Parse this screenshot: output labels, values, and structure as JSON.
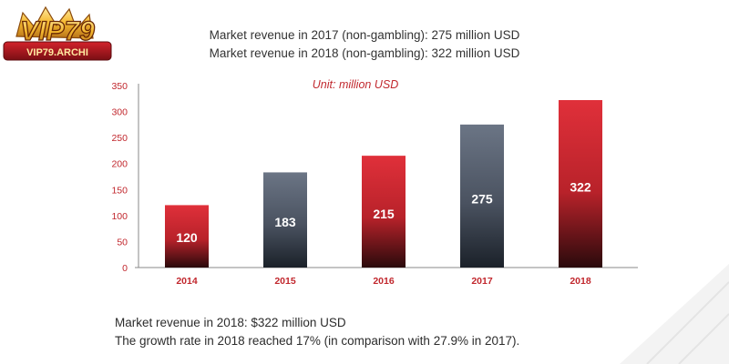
{
  "logo": {
    "text": "VIP79",
    "subtext": "VIP79.ARCHI"
  },
  "header": {
    "line1": "Market revenue in 2017 (non-gambling): 275 million USD",
    "line2": "Market revenue in 2018 (non-gambling): 322 million USD"
  },
  "chart_data": {
    "type": "bar",
    "unit_label": "Unit: million USD",
    "categories": [
      "2014",
      "2015",
      "2016",
      "2017",
      "2018"
    ],
    "values": [
      120,
      183,
      215,
      275,
      322
    ],
    "data_labels": [
      "120",
      "183",
      "215",
      "275",
      "322"
    ],
    "y_ticks": [
      "0",
      "50",
      "100",
      "150",
      "200",
      "250",
      "300",
      "350"
    ],
    "ylim": [
      0,
      350
    ],
    "bar_colors": [
      "red",
      "slate",
      "red",
      "slate",
      "red"
    ],
    "legend": "none",
    "grid": false
  },
  "colors": {
    "red_top": "#e0303a",
    "red_bottom": "#2a0a0c",
    "slate_top": "#6b7585",
    "slate_bottom": "#1b2129",
    "axis_text": "#c1272d",
    "axis_line": "#888888"
  },
  "footer": {
    "line1": "Market revenue in 2018: $322 million USD",
    "line2": "The growth rate in 2018 reached 17% (in comparison with 27.9% in 2017)."
  }
}
